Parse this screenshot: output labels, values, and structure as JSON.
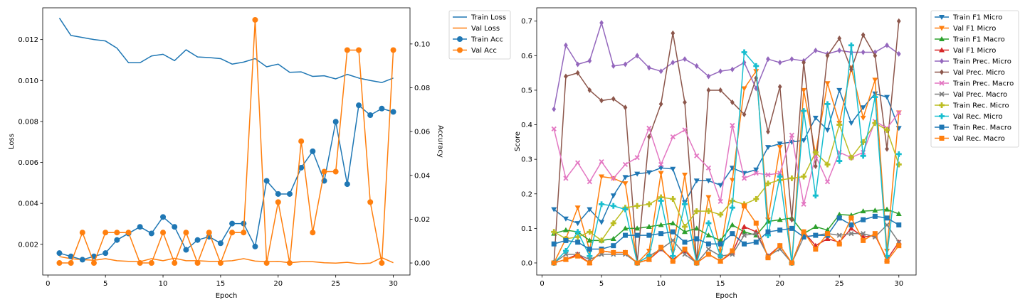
{
  "chart_data": [
    {
      "type": "line",
      "xlabel": "Epoch",
      "ylabel": "Loss",
      "y2label": "Accuracy",
      "xlim": [
        -0.45,
        31.45
      ],
      "xticks": [
        0,
        5,
        10,
        15,
        20,
        25,
        30
      ],
      "ylim": [
        0.0005,
        0.01355
      ],
      "yticks": [
        0.002,
        0.004,
        0.006,
        0.008,
        0.01,
        0.012
      ],
      "ytick_labels": [
        "0.002",
        "0.004",
        "0.006",
        "0.008",
        "0.010",
        "0.012"
      ],
      "y2lim": [
        -0.0055,
        0.1165
      ],
      "y2ticks": [
        0.0,
        0.02,
        0.04,
        0.06,
        0.08,
        0.1
      ],
      "y2tick_labels": [
        "0.00",
        "0.02",
        "0.04",
        "0.06",
        "0.08",
        "0.10"
      ],
      "grid": false,
      "legend": "outside-upper-right",
      "x": [
        1,
        2,
        3,
        4,
        5,
        6,
        7,
        8,
        9,
        10,
        11,
        12,
        13,
        14,
        15,
        16,
        17,
        18,
        19,
        20,
        21,
        22,
        23,
        24,
        25,
        26,
        27,
        28,
        29,
        30
      ],
      "series": [
        {
          "name": "Train Loss",
          "axis": "left",
          "color": "#1f77b4",
          "marker": "none",
          "values": [
            0.01305,
            0.0122,
            0.0121,
            0.012,
            0.01193,
            0.01158,
            0.01087,
            0.01087,
            0.0112,
            0.01128,
            0.01097,
            0.0115,
            0.01115,
            0.01112,
            0.01107,
            0.0108,
            0.0109,
            0.01107,
            0.01067,
            0.0108,
            0.0104,
            0.01042,
            0.0102,
            0.01023,
            0.01008,
            0.0103,
            0.01012,
            0.01,
            0.0099,
            0.01012
          ]
        },
        {
          "name": "Val Loss",
          "axis": "left",
          "color": "#ff7f0e",
          "marker": "none",
          "values": [
            0.0014,
            0.0013,
            0.00125,
            0.00122,
            0.0013,
            0.0012,
            0.00117,
            0.00115,
            0.0013,
            0.0012,
            0.00132,
            0.0012,
            0.0012,
            0.00117,
            0.00117,
            0.0012,
            0.0013,
            0.00118,
            0.00115,
            0.00117,
            0.0011,
            0.00115,
            0.00115,
            0.0011,
            0.00108,
            0.00112,
            0.00105,
            0.00108,
            0.00135,
            0.0011
          ]
        },
        {
          "name": "Train Acc",
          "axis": "right",
          "color": "#1f77b4",
          "marker": "circle",
          "values": [
            0.0045,
            0.003,
            0.0015,
            0.003,
            0.0045,
            0.0105,
            0.0135,
            0.0165,
            0.0135,
            0.021,
            0.0165,
            0.006,
            0.0105,
            0.012,
            0.009,
            0.018,
            0.018,
            0.0075,
            0.0375,
            0.0315,
            0.0315,
            0.0435,
            0.051,
            0.0375,
            0.0645,
            0.036,
            0.072,
            0.0675,
            0.0705,
            0.069
          ]
        },
        {
          "name": "Val Acc",
          "axis": "right",
          "color": "#ff7f0e",
          "marker": "circle",
          "values": [
            0.0,
            0.0,
            0.0139,
            0.0,
            0.0139,
            0.0139,
            0.0139,
            0.0,
            0.0,
            0.0139,
            0.0,
            0.0139,
            0.0,
            0.0139,
            0.0,
            0.0139,
            0.0139,
            0.111,
            0.0,
            0.0278,
            0.0,
            0.0556,
            0.0139,
            0.0417,
            0.0417,
            0.0972,
            0.0972,
            0.0278,
            0.0,
            0.0972
          ]
        }
      ]
    },
    {
      "type": "line",
      "xlabel": "Epoch",
      "ylabel": "Score",
      "xlim": [
        -0.45,
        31.45
      ],
      "xticks": [
        0,
        5,
        10,
        15,
        20,
        25,
        30
      ],
      "ylim": [
        -0.035,
        0.7385
      ],
      "yticks": [
        0.0,
        0.1,
        0.2,
        0.3,
        0.4,
        0.5,
        0.6,
        0.7
      ],
      "ytick_labels": [
        "0.0",
        "0.1",
        "0.2",
        "0.3",
        "0.4",
        "0.5",
        "0.6",
        "0.7"
      ],
      "grid": false,
      "legend": "outside-upper-right",
      "x": [
        1,
        2,
        3,
        4,
        5,
        6,
        7,
        8,
        9,
        10,
        11,
        12,
        13,
        14,
        15,
        16,
        17,
        18,
        19,
        20,
        21,
        22,
        23,
        24,
        25,
        26,
        27,
        28,
        29,
        30
      ],
      "series": [
        {
          "name": "Train F1 Micro",
          "color": "#1f77b4",
          "marker": "tri-down",
          "values": [
            0.155,
            0.128,
            0.115,
            0.155,
            0.118,
            0.195,
            0.248,
            0.258,
            0.262,
            0.275,
            0.272,
            0.175,
            0.238,
            0.238,
            0.225,
            0.275,
            0.26,
            0.27,
            0.335,
            0.345,
            0.35,
            0.355,
            0.42,
            0.385,
            0.5,
            0.405,
            0.45,
            0.49,
            0.48,
            0.39
          ]
        },
        {
          "name": "Val F1 Micro",
          "color": "#ff7f0e",
          "marker": "tri-down",
          "values": [
            0.0,
            0.07,
            0.16,
            0.035,
            0.25,
            0.245,
            0.23,
            0.0,
            0.035,
            0.26,
            0.035,
            0.255,
            0.0,
            0.19,
            0.035,
            0.24,
            0.505,
            0.555,
            0.125,
            0.335,
            0.0,
            0.5,
            0.315,
            0.52,
            0.405,
            0.565,
            0.42,
            0.53,
            0.035,
            0.435
          ]
        },
        {
          "name": "Train F1 Macro",
          "color": "#2ca02c",
          "marker": "tri-up",
          "values": [
            0.085,
            0.095,
            0.09,
            0.065,
            0.065,
            0.07,
            0.1,
            0.1,
            0.105,
            0.11,
            0.115,
            0.09,
            0.1,
            0.08,
            0.065,
            0.11,
            0.09,
            0.08,
            0.12,
            0.125,
            0.13,
            0.085,
            0.105,
            0.095,
            0.14,
            0.138,
            0.15,
            0.152,
            0.155,
            0.142
          ]
        },
        {
          "name": "Val F1 Micro",
          "color": "#d62728",
          "marker": "tri-up",
          "values": [
            0.0,
            0.01,
            0.025,
            0.0,
            0.035,
            0.03,
            0.03,
            0.0,
            0.01,
            0.04,
            0.01,
            0.035,
            0.0,
            0.025,
            0.005,
            0.03,
            0.105,
            0.09,
            0.02,
            0.05,
            0.0,
            0.09,
            0.05,
            0.07,
            0.06,
            0.1,
            0.075,
            0.08,
            0.01,
            0.06
          ]
        },
        {
          "name": "Train Prec. Micro",
          "color": "#9467bd",
          "marker": "diamond",
          "values": [
            0.445,
            0.63,
            0.575,
            0.585,
            0.695,
            0.57,
            0.575,
            0.6,
            0.565,
            0.555,
            0.58,
            0.59,
            0.57,
            0.54,
            0.555,
            0.56,
            0.58,
            0.505,
            0.59,
            0.58,
            0.59,
            0.585,
            0.615,
            0.605,
            0.615,
            0.61,
            0.61,
            0.61,
            0.63,
            0.605
          ]
        },
        {
          "name": "Val Prec. Micro",
          "color": "#8c564b",
          "marker": "diamond",
          "values": [
            0.0,
            0.54,
            0.55,
            0.5,
            0.47,
            0.475,
            0.45,
            0.0,
            0.365,
            0.46,
            0.665,
            0.465,
            0.0,
            0.5,
            0.5,
            0.465,
            0.43,
            0.535,
            0.38,
            0.51,
            0.125,
            0.58,
            0.28,
            0.6,
            0.65,
            0.56,
            0.66,
            0.6,
            0.33,
            0.7
          ]
        },
        {
          "name": "Train Prec. Macro",
          "color": "#e377c2",
          "marker": "x",
          "values": [
            0.388,
            0.245,
            0.29,
            0.235,
            0.293,
            0.245,
            0.285,
            0.305,
            0.39,
            0.285,
            0.365,
            0.385,
            0.31,
            0.275,
            0.178,
            0.398,
            0.245,
            0.26,
            0.255,
            0.26,
            0.37,
            0.17,
            0.31,
            0.235,
            0.32,
            0.305,
            0.32,
            0.41,
            0.39,
            0.435
          ]
        },
        {
          "name": "Val Prec. Macro",
          "color": "#7f7f7f",
          "marker": "x",
          "values": [
            0.0,
            0.025,
            0.025,
            0.01,
            0.025,
            0.025,
            0.025,
            0.0,
            0.02,
            0.04,
            0.065,
            0.025,
            0.0,
            0.04,
            0.02,
            0.025,
            0.08,
            0.085,
            0.02,
            0.04,
            0.0,
            0.075,
            0.08,
            0.085,
            0.08,
            0.085,
            0.085,
            0.075,
            0.11,
            0.06
          ]
        },
        {
          "name": "Train Rec. Micro",
          "color": "#bcbd22",
          "marker": "plus",
          "values": [
            0.09,
            0.07,
            0.075,
            0.09,
            0.065,
            0.115,
            0.16,
            0.165,
            0.17,
            0.19,
            0.185,
            0.105,
            0.15,
            0.15,
            0.14,
            0.18,
            0.17,
            0.185,
            0.23,
            0.24,
            0.245,
            0.25,
            0.32,
            0.285,
            0.4,
            0.305,
            0.35,
            0.405,
            0.385,
            0.285
          ]
        },
        {
          "name": "Val Rec. Micro",
          "color": "#17becf",
          "marker": "plus",
          "values": [
            0.0,
            0.035,
            0.09,
            0.02,
            0.17,
            0.165,
            0.155,
            0.0,
            0.02,
            0.18,
            0.02,
            0.17,
            0.0,
            0.115,
            0.02,
            0.16,
            0.61,
            0.57,
            0.08,
            0.25,
            0.0,
            0.44,
            0.195,
            0.46,
            0.295,
            0.63,
            0.31,
            0.48,
            0.02,
            0.315
          ]
        },
        {
          "name": "Train Rec. Macro",
          "color": "#1f77b4",
          "marker": "square",
          "values": [
            0.055,
            0.065,
            0.06,
            0.04,
            0.04,
            0.05,
            0.08,
            0.08,
            0.08,
            0.085,
            0.09,
            0.06,
            0.07,
            0.055,
            0.055,
            0.085,
            0.055,
            0.06,
            0.09,
            0.095,
            0.1,
            0.075,
            0.08,
            0.08,
            0.13,
            0.11,
            0.125,
            0.135,
            0.13,
            0.11
          ]
        },
        {
          "name": "Val Rec. Macro",
          "color": "#ff7f0e",
          "marker": "square",
          "values": [
            0.0,
            0.01,
            0.02,
            0.0,
            0.035,
            0.03,
            0.03,
            0.0,
            0.01,
            0.045,
            0.005,
            0.04,
            0.0,
            0.025,
            0.005,
            0.035,
            0.165,
            0.115,
            0.015,
            0.05,
            0.0,
            0.09,
            0.04,
            0.085,
            0.055,
            0.13,
            0.065,
            0.085,
            0.005,
            0.05
          ]
        }
      ]
    }
  ]
}
